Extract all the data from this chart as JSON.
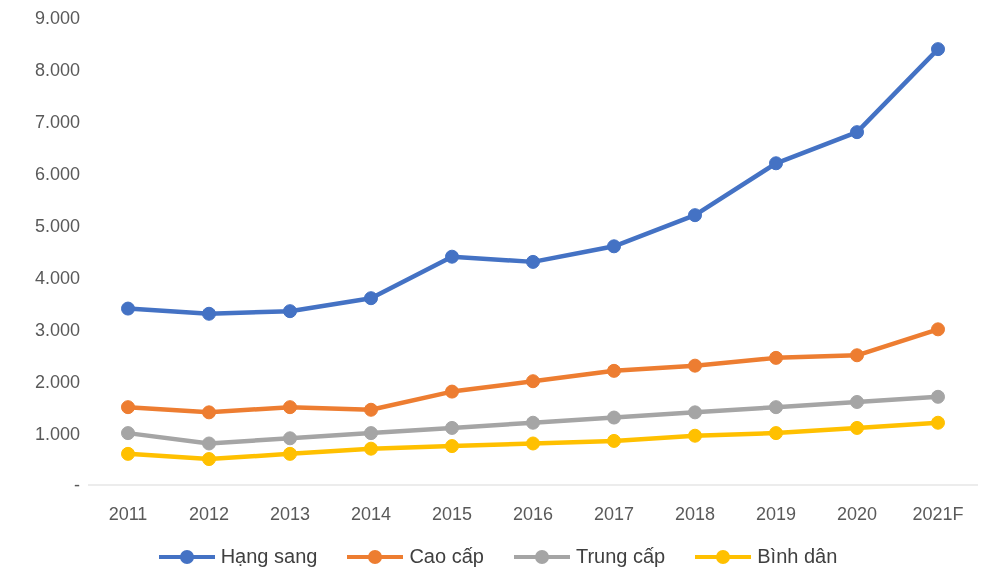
{
  "chart_data": {
    "type": "line",
    "categories": [
      "2011",
      "2012",
      "2013",
      "2014",
      "2015",
      "2016",
      "2017",
      "2018",
      "2019",
      "2020",
      "2021F"
    ],
    "series": [
      {
        "name": "Hạng sang",
        "color": "#4472c4",
        "values": [
          3400,
          3300,
          3350,
          3600,
          4400,
          4300,
          4600,
          5200,
          6200,
          6800,
          8400
        ]
      },
      {
        "name": "Cao cấp",
        "color": "#ed7d31",
        "values": [
          1500,
          1400,
          1500,
          1450,
          1800,
          2000,
          2200,
          2300,
          2450,
          2500,
          3000
        ]
      },
      {
        "name": "Trung cấp",
        "color": "#a5a5a5",
        "values": [
          1000,
          800,
          900,
          1000,
          1100,
          1200,
          1300,
          1400,
          1500,
          1600,
          1700
        ]
      },
      {
        "name": "Bình dân",
        "color": "#ffc000",
        "values": [
          600,
          500,
          600,
          700,
          750,
          800,
          850,
          950,
          1000,
          1100,
          1200
        ]
      }
    ],
    "ylim": [
      0,
      9000
    ],
    "yticks": [
      {
        "value": 0,
        "label": "-"
      },
      {
        "value": 1000,
        "label": "1.000"
      },
      {
        "value": 2000,
        "label": "2.000"
      },
      {
        "value": 3000,
        "label": "3.000"
      },
      {
        "value": 4000,
        "label": "4.000"
      },
      {
        "value": 5000,
        "label": "5.000"
      },
      {
        "value": 6000,
        "label": "6.000"
      },
      {
        "value": 7000,
        "label": "7.000"
      },
      {
        "value": 8000,
        "label": "8.000"
      },
      {
        "value": 9000,
        "label": "9.000"
      }
    ],
    "grid": false,
    "legend": "bottom",
    "marker": "circle",
    "line_style": "solid"
  }
}
